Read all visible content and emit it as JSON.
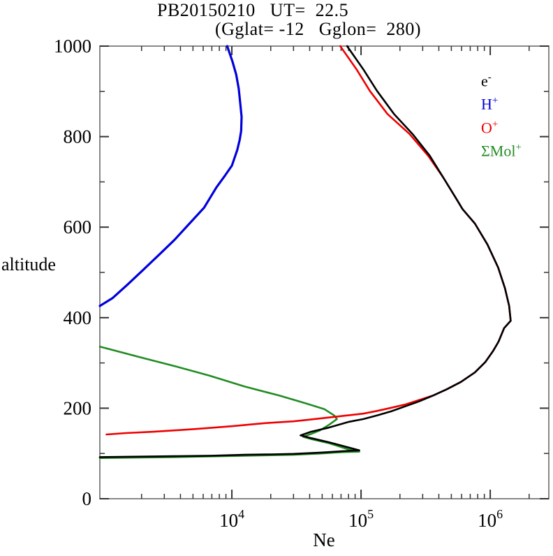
{
  "title": {
    "line1": "PB20150210   UT=  22.5",
    "line2": "(Gglat= -12   Gglon=  280)"
  },
  "axes": {
    "y_label": "altitude",
    "x_label": "Ne"
  },
  "legend": {
    "position": "top-right",
    "items": [
      {
        "base": "e",
        "sup": "-",
        "color": "#000000"
      },
      {
        "base": "H",
        "sup": "+",
        "color": "#0000dd"
      },
      {
        "base": "O",
        "sup": "+",
        "color": "#ee0000"
      },
      {
        "base": "ΣMol",
        "sup": "+",
        "color": "#228b22"
      }
    ]
  },
  "chart_data": {
    "type": "line",
    "title": "PB20150210   UT=  22.5",
    "subtitle": "(Gglat= -12   Gglon=  280)",
    "xlabel": "Ne",
    "ylabel": "altitude",
    "x_scale": "log",
    "grid": false,
    "xlim": [
      951,
      2840000
    ],
    "ylim": [
      0,
      1000
    ],
    "x_major_ticks": [
      {
        "value": 10000,
        "base": "10",
        "exp": "4"
      },
      {
        "value": 100000,
        "base": "10",
        "exp": "5"
      },
      {
        "value": 1000000,
        "base": "10",
        "exp": "6"
      }
    ],
    "x_minor_ticks": [
      2000,
      3000,
      4000,
      5000,
      6000,
      7000,
      8000,
      9000,
      20000,
      30000,
      40000,
      50000,
      60000,
      70000,
      80000,
      90000,
      200000,
      300000,
      400000,
      500000,
      600000,
      700000,
      800000,
      900000,
      2000000
    ],
    "y_major_ticks": [
      0,
      200,
      400,
      600,
      800,
      1000
    ],
    "y_minor_ticks": [
      100,
      300,
      500,
      700,
      900
    ],
    "frame_color": "#888888",
    "tick_color": "#333333",
    "series": [
      {
        "name": "Mol+",
        "color": "#228b22",
        "width": 2.6,
        "points": [
          [
            951,
            336
          ],
          [
            1930,
            313
          ],
          [
            3600,
            293
          ],
          [
            6700,
            272
          ],
          [
            12500,
            248
          ],
          [
            23300,
            228
          ],
          [
            38000,
            210
          ],
          [
            52000,
            198
          ],
          [
            62000,
            184
          ],
          [
            65000,
            176
          ],
          [
            57000,
            164
          ],
          [
            48000,
            151
          ],
          [
            41000,
            143
          ],
          [
            35600,
            137
          ],
          [
            41000,
            132
          ],
          [
            56000,
            123
          ],
          [
            80000,
            109
          ],
          [
            97000,
            104
          ],
          [
            71000,
            103
          ],
          [
            49000,
            100
          ],
          [
            30000,
            97
          ],
          [
            12500,
            95
          ],
          [
            3600,
            92
          ],
          [
            951,
            90
          ]
        ]
      },
      {
        "name": "O+",
        "color": "#ee0000",
        "width": 2.6,
        "points": [
          [
            1070,
            142
          ],
          [
            1510,
            145
          ],
          [
            2480,
            148
          ],
          [
            5230,
            154
          ],
          [
            9800,
            160
          ],
          [
            18000,
            167
          ],
          [
            30000,
            171
          ],
          [
            38000,
            174
          ],
          [
            63000,
            181
          ],
          [
            104000,
            188
          ],
          [
            133000,
            194
          ],
          [
            171000,
            201
          ],
          [
            219000,
            208
          ],
          [
            281000,
            218
          ],
          [
            361000,
            228
          ],
          [
            462000,
            242
          ],
          [
            593000,
            258
          ],
          [
            760000,
            279
          ],
          [
            916000,
            302
          ],
          [
            1050000,
            326
          ],
          [
            1160000,
            347
          ],
          [
            1280000,
            377
          ],
          [
            1440000,
            393
          ],
          [
            1400000,
            426
          ],
          [
            1300000,
            465
          ],
          [
            1150000,
            511
          ],
          [
            950000,
            562
          ],
          [
            760000,
            608
          ],
          [
            610000,
            640
          ],
          [
            540000,
            665
          ],
          [
            430000,
            711
          ],
          [
            330000,
            758
          ],
          [
            237000,
            806
          ],
          [
            160000,
            850
          ],
          [
            117000,
            901
          ],
          [
            93000,
            947
          ],
          [
            69000,
            1000
          ]
        ]
      },
      {
        "name": "H+",
        "color": "#0000dd",
        "width": 3.2,
        "points": [
          [
            9200,
            1000
          ],
          [
            10100,
            966
          ],
          [
            10800,
            937
          ],
          [
            11300,
            906
          ],
          [
            11600,
            875
          ],
          [
            11900,
            844
          ],
          [
            11800,
            813
          ],
          [
            11500,
            793
          ],
          [
            11000,
            770
          ],
          [
            10000,
            736
          ],
          [
            8800,
            713
          ],
          [
            7600,
            688
          ],
          [
            6100,
            643
          ],
          [
            4700,
            608
          ],
          [
            3600,
            572
          ],
          [
            2800,
            542
          ],
          [
            2100,
            508
          ],
          [
            1570,
            474
          ],
          [
            1190,
            443
          ],
          [
            951,
            426
          ]
        ]
      },
      {
        "name": "e-",
        "color": "#000000",
        "width": 2.6,
        "points": [
          [
            951,
            92
          ],
          [
            2000,
            93
          ],
          [
            3600,
            94
          ],
          [
            7000,
            95
          ],
          [
            12500,
            97
          ],
          [
            20000,
            98
          ],
          [
            30000,
            99
          ],
          [
            49000,
            102
          ],
          [
            71000,
            105
          ],
          [
            97000,
            107
          ],
          [
            56000,
            125
          ],
          [
            41000,
            134
          ],
          [
            34000,
            140
          ],
          [
            41000,
            148
          ],
          [
            56000,
            157
          ],
          [
            81000,
            170
          ],
          [
            104000,
            176
          ],
          [
            133000,
            184
          ],
          [
            171000,
            193
          ],
          [
            219000,
            204
          ],
          [
            281000,
            215
          ],
          [
            361000,
            228
          ],
          [
            462000,
            242
          ],
          [
            593000,
            258
          ],
          [
            760000,
            279
          ],
          [
            916000,
            302
          ],
          [
            1050000,
            326
          ],
          [
            1160000,
            347
          ],
          [
            1280000,
            377
          ],
          [
            1440000,
            393
          ],
          [
            1400000,
            426
          ],
          [
            1300000,
            465
          ],
          [
            1150000,
            511
          ],
          [
            950000,
            562
          ],
          [
            760000,
            608
          ],
          [
            610000,
            640
          ],
          [
            540000,
            665
          ],
          [
            430000,
            711
          ],
          [
            340000,
            758
          ],
          [
            250000,
            806
          ],
          [
            180000,
            850
          ],
          [
            133000,
            901
          ],
          [
            105000,
            947
          ],
          [
            78000,
            1000
          ]
        ]
      }
    ]
  }
}
